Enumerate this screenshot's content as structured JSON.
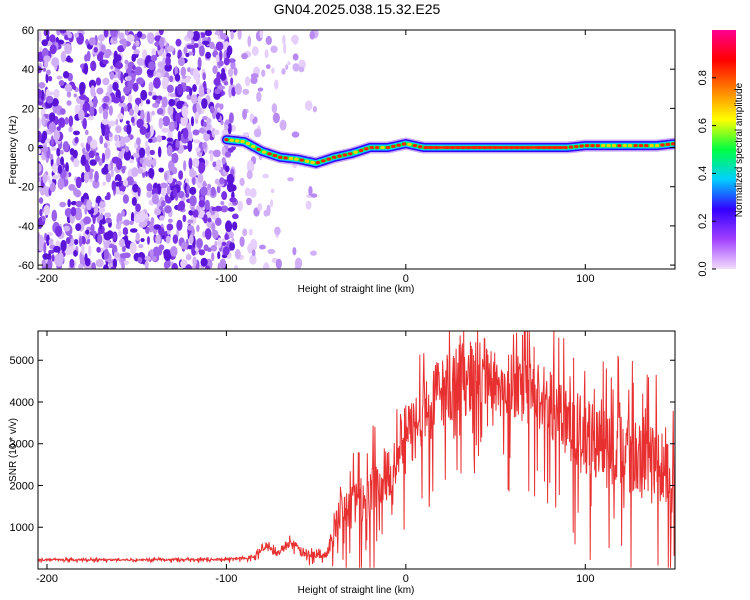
{
  "title": "GN04.2025.038.15.32.E25",
  "colors": {
    "snr_line": "#e83030",
    "frame": "#000000",
    "background": "#ffffff",
    "colormap": [
      "#f2dcfa",
      "#a040ff",
      "#3300ff",
      "#00d0ff",
      "#00ff40",
      "#ffff00",
      "#ff8000",
      "#ff0000",
      "#ff0090"
    ]
  },
  "chart_data": [
    {
      "type": "heatmap",
      "xlabel": "Height of straight line (km)",
      "ylabel": "Frequency (Hz)",
      "xlim": [
        -205,
        150
      ],
      "ylim": [
        -62,
        60
      ],
      "xticks": [
        "-200",
        "-100",
        "0",
        "100"
      ],
      "yticks": [
        "-60",
        "-40",
        "-20",
        "0",
        "20",
        "40",
        "60"
      ],
      "colorbar": {
        "label": "Normalized spectral amplitude",
        "range": [
          0,
          1
        ],
        "ticks": [
          "0.0",
          "0.2",
          "0.4",
          "0.6",
          "0.8"
        ]
      },
      "noise_region_x": [
        -205,
        -50
      ],
      "signal_track": [
        [
          -100,
          4
        ],
        [
          -90,
          3
        ],
        [
          -80,
          -2
        ],
        [
          -70,
          -5
        ],
        [
          -60,
          -6
        ],
        [
          -50,
          -8
        ],
        [
          -40,
          -5
        ],
        [
          -30,
          -3
        ],
        [
          -20,
          0
        ],
        [
          -10,
          0
        ],
        [
          0,
          2
        ],
        [
          10,
          0
        ],
        [
          50,
          0
        ],
        [
          90,
          0
        ],
        [
          100,
          1
        ],
        [
          120,
          1
        ],
        [
          140,
          1
        ],
        [
          150,
          2
        ]
      ]
    },
    {
      "type": "line",
      "xlabel": "Height of straight line (km)",
      "ylabel": "SNR (10 * v/v)",
      "xlim": [
        -205,
        150
      ],
      "ylim": [
        0,
        5700
      ],
      "xticks": [
        "-200",
        "-100",
        "0",
        "100"
      ],
      "yticks": [
        "1000",
        "2000",
        "3000",
        "4000",
        "5000"
      ],
      "series": [
        {
          "x": [
            -205,
            -150,
            -100,
            -85,
            -78,
            -72,
            -65,
            -58,
            -52,
            -45,
            -40,
            -35,
            -30,
            -25,
            -20,
            -15,
            -10,
            -5,
            0,
            5,
            10,
            15,
            20,
            25,
            30,
            35,
            40,
            45,
            50,
            55,
            60,
            65,
            70,
            75,
            80,
            85,
            90,
            95,
            100,
            105,
            110,
            115,
            120,
            125,
            130,
            135,
            140,
            145,
            150
          ],
          "values": [
            220,
            220,
            230,
            300,
            550,
            350,
            650,
            400,
            350,
            300,
            900,
            1600,
            1500,
            1700,
            1900,
            2100,
            2400,
            2800,
            3100,
            3400,
            3800,
            4000,
            4300,
            4400,
            4500,
            4600,
            4600,
            4700,
            4500,
            4400,
            4300,
            4300,
            4200,
            4100,
            4000,
            3900,
            3600,
            3300,
            3100,
            3000,
            2900,
            2900,
            3000,
            2800,
            2700,
            2600,
            2500,
            2400,
            2300
          ],
          "amplitude": [
            40,
            40,
            45,
            80,
            150,
            120,
            220,
            200,
            150,
            120,
            600,
            900,
            1100,
            1100,
            1200,
            1200,
            1300,
            1300,
            1400,
            1400,
            1400,
            1500,
            1500,
            1500,
            1500,
            1500,
            1500,
            1400,
            1400,
            1400,
            1400,
            1400,
            1400,
            1400,
            1500,
            1500,
            1500,
            1600,
            1600,
            1600,
            1600,
            1700,
            1700,
            1700,
            1700,
            1700,
            1700,
            1700,
            1700
          ]
        }
      ]
    }
  ]
}
